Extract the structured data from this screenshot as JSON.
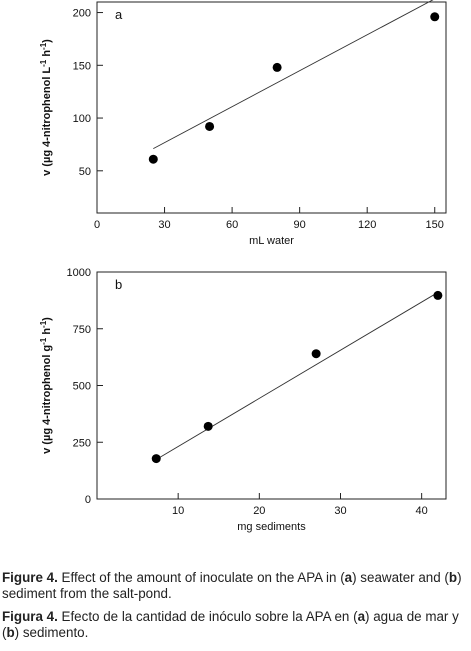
{
  "chart_data": [
    {
      "type": "scatter",
      "panel_label": "a",
      "xlabel": "mL water",
      "ylabel_parts": [
        "v (µg 4-nitrophenol L",
        "-1",
        " h",
        "-1",
        ")"
      ],
      "xlim": [
        0,
        155
      ],
      "ylim": [
        10,
        210
      ],
      "xticks": [
        0,
        30,
        60,
        90,
        120,
        150
      ],
      "yticks": [
        50,
        100,
        150,
        200
      ],
      "points": [
        {
          "x": 25,
          "y": 61
        },
        {
          "x": 50,
          "y": 92
        },
        {
          "x": 80,
          "y": 148
        },
        {
          "x": 150,
          "y": 196
        }
      ],
      "fit_line": {
        "x1": 25,
        "y1": 71,
        "x2": 150,
        "y2": 213
      }
    },
    {
      "type": "scatter",
      "panel_label": "b",
      "xlabel": "mg sediments",
      "ylabel_parts": [
        "v (µg 4-nitrophenol g",
        "-1",
        " h",
        "-1",
        ")"
      ],
      "xlim": [
        0,
        43
      ],
      "ylim": [
        0,
        1000
      ],
      "xticks": [
        10,
        20,
        30,
        40
      ],
      "yticks": [
        0,
        250,
        500,
        750,
        1000
      ],
      "points": [
        {
          "x": 7.3,
          "y": 178
        },
        {
          "x": 13.7,
          "y": 320
        },
        {
          "x": 27,
          "y": 640
        },
        {
          "x": 42,
          "y": 897
        }
      ],
      "fit_line": {
        "x1": 7.3,
        "y1": 174,
        "x2": 42,
        "y2": 910
      }
    }
  ],
  "caption": {
    "en_label": "Figure 4.",
    "en_parts": [
      " Effect of the amount of inoculate on the APA in (",
      "a",
      ") seawater and (",
      "b",
      ") sediment from the salt-pond."
    ],
    "es_label": "Figura 4.",
    "es_parts": [
      " Efecto de la cantidad de inóculo sobre la APA en (",
      "a",
      ") agua de mar y (",
      "b",
      ") sedimento."
    ]
  }
}
